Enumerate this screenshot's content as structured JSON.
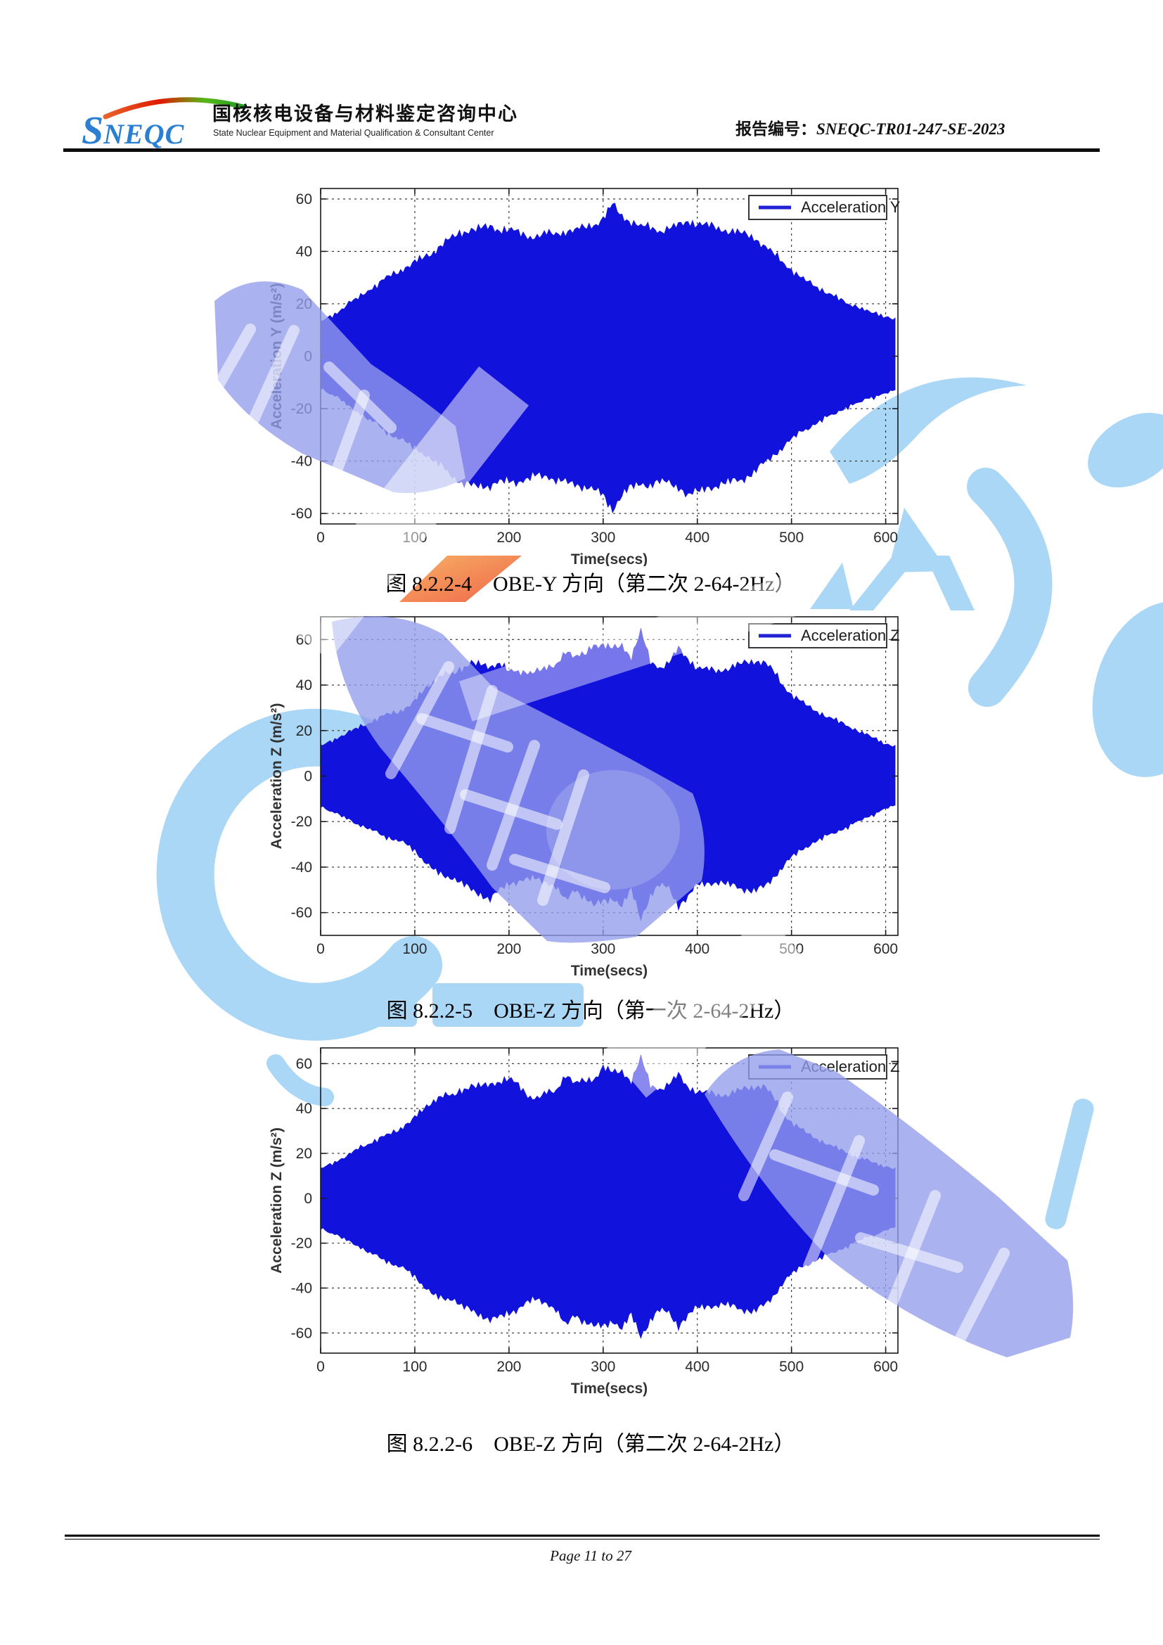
{
  "header": {
    "logo_text_big": "S",
    "logo_text_rest": "NEQC",
    "org_name_zh": "国核核电设备与材料鉴定咨询中心",
    "org_name_en": "State Nuclear Equipment and Material Qualification & Consultant Center",
    "report_no_label": "报告编号：",
    "report_no": "SNEQC-TR01-247-SE-2023"
  },
  "figures": [
    {
      "caption": "图 8.2.2-4　OBE-Y 方向（第二次 2-64-2Hz）"
    },
    {
      "caption": "图 8.2.2-5　OBE-Z 方向（第一次 2-64-2Hz）"
    },
    {
      "caption": "图 8.2.2-6　OBE-Z 方向（第二次 2-64-2Hz）"
    }
  ],
  "footer": {
    "page_text": "Page 11 to 27"
  },
  "colors": {
    "accel_blue": "#1212dd",
    "sky_watermark": "#aad7f5",
    "lavender_watermark": "rgba(148,156,236,0.78)"
  },
  "chart_data": [
    {
      "type": "area",
      "legend": "Acceleration Y",
      "xlabel": "Time(secs)",
      "ylabel": "Acceleration Y (m/s²)",
      "xlim": [
        0,
        613
      ],
      "ylim": [
        -64,
        64
      ],
      "xticks": [
        0,
        100,
        200,
        300,
        400,
        500,
        600
      ],
      "yticks": [
        -60,
        -40,
        -20,
        0,
        20,
        40,
        60
      ],
      "grid": true,
      "legend_position": "top-right",
      "line_color": "#1212dd",
      "t_step": 10,
      "upper": [
        13,
        15,
        17,
        20,
        22,
        25,
        27,
        30,
        32,
        34,
        36,
        38,
        40,
        43,
        45,
        47,
        48,
        48,
        49,
        48,
        48,
        47,
        46,
        46,
        47,
        47,
        48,
        48,
        49,
        50,
        52,
        57,
        53,
        51,
        49,
        49,
        48,
        49,
        50,
        52,
        51,
        50,
        49,
        48,
        47,
        46,
        45,
        42,
        39,
        36,
        33,
        30,
        28,
        26,
        24,
        22,
        20,
        19,
        17,
        16,
        15,
        14
      ],
      "lower": [
        -12,
        -14,
        -16,
        -19,
        -21,
        -24,
        -26,
        -29,
        -31,
        -33,
        -35,
        -37,
        -40,
        -42,
        -45,
        -48,
        -49,
        -49,
        -49,
        -48,
        -48,
        -48,
        -47,
        -46,
        -46,
        -47,
        -48,
        -49,
        -49,
        -50,
        -53,
        -58,
        -52,
        -50,
        -49,
        -49,
        -48,
        -49,
        -50,
        -53,
        -52,
        -50,
        -49,
        -48,
        -47,
        -46,
        -44,
        -41,
        -38,
        -35,
        -32,
        -29,
        -27,
        -25,
        -23,
        -21,
        -19,
        -18,
        -16,
        -15,
        -14,
        -13
      ]
    },
    {
      "type": "area",
      "legend": "Acceleration Z",
      "xlabel": "Time(secs)",
      "ylabel": "Acceleration Z (m/s²)",
      "xlim": [
        0,
        613
      ],
      "ylim": [
        -70,
        70
      ],
      "xticks": [
        0,
        100,
        200,
        300,
        400,
        500,
        600
      ],
      "yticks": [
        -60,
        -40,
        -20,
        0,
        20,
        40,
        60
      ],
      "grid": true,
      "legend_position": "top-right",
      "line_color": "#1212dd",
      "t_step": 10,
      "upper": [
        13,
        15,
        17,
        19,
        21,
        23,
        25,
        27,
        28,
        30,
        33,
        38,
        42,
        45,
        44,
        47,
        50,
        48,
        47,
        50,
        46,
        45,
        46,
        47,
        47,
        49,
        56,
        52,
        53,
        58,
        57,
        55,
        57,
        52,
        63,
        50,
        48,
        50,
        56,
        52,
        48,
        47,
        46,
        47,
        48,
        49,
        50,
        50,
        46,
        40,
        36,
        33,
        30,
        28,
        26,
        24,
        22,
        20,
        18,
        16,
        14,
        13
      ],
      "lower": [
        -13,
        -15,
        -17,
        -19,
        -21,
        -23,
        -25,
        -27,
        -28,
        -30,
        -33,
        -37,
        -41,
        -44,
        -44,
        -46,
        -50,
        -52,
        -53,
        -50,
        -48,
        -46,
        -45,
        -46,
        -47,
        -48,
        -55,
        -50,
        -52,
        -56,
        -55,
        -53,
        -56,
        -50,
        -63,
        -52,
        -48,
        -50,
        -57,
        -53,
        -48,
        -47,
        -46,
        -47,
        -48,
        -49,
        -50,
        -49,
        -45,
        -40,
        -36,
        -33,
        -30,
        -28,
        -26,
        -24,
        -22,
        -20,
        -18,
        -16,
        -14,
        -13
      ]
    },
    {
      "type": "area",
      "legend": "Acceleration Z",
      "xlabel": "Time(secs)",
      "ylabel": "Acceleration Z (m/s²)",
      "xlim": [
        0,
        613
      ],
      "ylim": [
        -69,
        67
      ],
      "xticks": [
        0,
        100,
        200,
        300,
        400,
        500,
        600
      ],
      "yticks": [
        -60,
        -40,
        -20,
        0,
        20,
        40,
        60
      ],
      "grid": true,
      "legend_position": "top-right",
      "line_color": "#1212dd",
      "t_step": 10,
      "upper": [
        13,
        15,
        17,
        19,
        22,
        24,
        26,
        28,
        30,
        33,
        36,
        40,
        44,
        46,
        45,
        48,
        50,
        49,
        50,
        52,
        53,
        50,
        46,
        45,
        47,
        48,
        56,
        51,
        52,
        53,
        58,
        55,
        56,
        52,
        62,
        50,
        49,
        51,
        55,
        50,
        48,
        47,
        46,
        46,
        47,
        48,
        49,
        50,
        45,
        38,
        34,
        31,
        28,
        26,
        24,
        22,
        20,
        18,
        17,
        15,
        14,
        13
      ],
      "lower": [
        -13,
        -15,
        -17,
        -19,
        -21,
        -24,
        -26,
        -28,
        -30,
        -32,
        -35,
        -39,
        -43,
        -45,
        -44,
        -47,
        -50,
        -52,
        -53,
        -53,
        -52,
        -49,
        -46,
        -46,
        -47,
        -49,
        -57,
        -52,
        -54,
        -56,
        -57,
        -54,
        -57,
        -52,
        -62,
        -54,
        -50,
        -52,
        -57,
        -52,
        -49,
        -48,
        -47,
        -47,
        -48,
        -49,
        -50,
        -48,
        -44,
        -38,
        -34,
        -31,
        -29,
        -27,
        -25,
        -23,
        -21,
        -19,
        -17,
        -16,
        -14,
        -13
      ]
    }
  ]
}
